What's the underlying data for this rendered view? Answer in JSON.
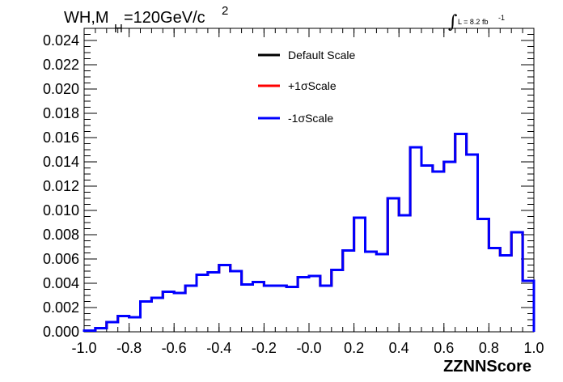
{
  "chart_data": {
    "type": "line",
    "title": {
      "main": "WH,M",
      "subscript": "H",
      "value": "=120GeV/c",
      "superscript": "2"
    },
    "luminosity": {
      "integral_sign": "∫",
      "text": "L = 8.2 fb",
      "superscript": "-1"
    },
    "xlabel": "ZZNNScore",
    "ylabel": "",
    "xlim": [
      -1.0,
      1.0
    ],
    "ylim": [
      0,
      0.025
    ],
    "xticks": [
      -1.0,
      -0.8,
      -0.6,
      -0.4,
      -0.2,
      0.0,
      0.2,
      0.4,
      0.6,
      0.8,
      1.0
    ],
    "xtick_labels": [
      "-1.0",
      "-0.8",
      "-0.6",
      "-0.4",
      "-0.2",
      "-0.0",
      "0.2",
      "0.4",
      "0.6",
      "0.8",
      "1.0"
    ],
    "yticks": [
      0,
      0.002,
      0.004,
      0.006,
      0.008,
      0.01,
      0.012,
      0.014,
      0.016,
      0.018,
      0.02,
      0.022,
      0.024
    ],
    "ytick_labels": [
      "0.000",
      "0.002",
      "0.004",
      "0.006",
      "0.008",
      "0.010",
      "0.012",
      "0.014",
      "0.016",
      "0.018",
      "0.020",
      "0.022",
      "0.024"
    ],
    "bin_edges": [
      -1.0,
      -0.95,
      -0.9,
      -0.85,
      -0.8,
      -0.75,
      -0.7,
      -0.65,
      -0.6,
      -0.55,
      -0.5,
      -0.45,
      -0.4,
      -0.35,
      -0.3,
      -0.25,
      -0.2,
      -0.15,
      -0.1,
      -0.05,
      0.0,
      0.05,
      0.1,
      0.15,
      0.2,
      0.25,
      0.3,
      0.35,
      0.4,
      0.45,
      0.5,
      0.55,
      0.6,
      0.65,
      0.7,
      0.75,
      0.8,
      0.85,
      0.9,
      0.95,
      1.0
    ],
    "series": [
      {
        "name": "Default Scale",
        "color": "#000000",
        "values": [
          0.0001,
          0.0003,
          0.0008,
          0.0013,
          0.0012,
          0.0025,
          0.0028,
          0.0033,
          0.0032,
          0.0038,
          0.0047,
          0.0049,
          0.0055,
          0.005,
          0.0039,
          0.0041,
          0.0038,
          0.0038,
          0.0037,
          0.0045,
          0.0046,
          0.0038,
          0.0051,
          0.0067,
          0.0094,
          0.0066,
          0.0064,
          0.011,
          0.0096,
          0.0152,
          0.0137,
          0.0132,
          0.014,
          0.0163,
          0.0146,
          0.0093,
          0.0069,
          0.0063,
          0.0082,
          0.0042
        ]
      },
      {
        "name": "+1σScale",
        "color": "#ff0000",
        "values": [
          0.0001,
          0.0003,
          0.0008,
          0.0013,
          0.0012,
          0.0025,
          0.0028,
          0.0033,
          0.0032,
          0.0038,
          0.0047,
          0.0049,
          0.0055,
          0.005,
          0.0039,
          0.0041,
          0.0038,
          0.0038,
          0.0037,
          0.0045,
          0.0046,
          0.0038,
          0.0051,
          0.0067,
          0.0094,
          0.0066,
          0.0064,
          0.011,
          0.0096,
          0.0152,
          0.0137,
          0.0132,
          0.014,
          0.0163,
          0.0146,
          0.0093,
          0.0069,
          0.0063,
          0.0082,
          0.0042
        ]
      },
      {
        "name": "-1σScale",
        "color": "#0000ff",
        "values": [
          0.0001,
          0.0003,
          0.0008,
          0.0013,
          0.0012,
          0.0025,
          0.0028,
          0.0033,
          0.0032,
          0.0038,
          0.0047,
          0.0049,
          0.0055,
          0.005,
          0.0039,
          0.0041,
          0.0038,
          0.0038,
          0.0037,
          0.0045,
          0.0046,
          0.0038,
          0.0051,
          0.0067,
          0.0094,
          0.0066,
          0.0064,
          0.011,
          0.0096,
          0.0152,
          0.0137,
          0.0132,
          0.014,
          0.0163,
          0.0146,
          0.0093,
          0.0069,
          0.0063,
          0.0082,
          0.0042
        ]
      }
    ],
    "legend": {
      "position": "top-center",
      "entries": [
        "Default Scale",
        "+1σScale",
        "-1σScale"
      ]
    },
    "grid": false
  }
}
